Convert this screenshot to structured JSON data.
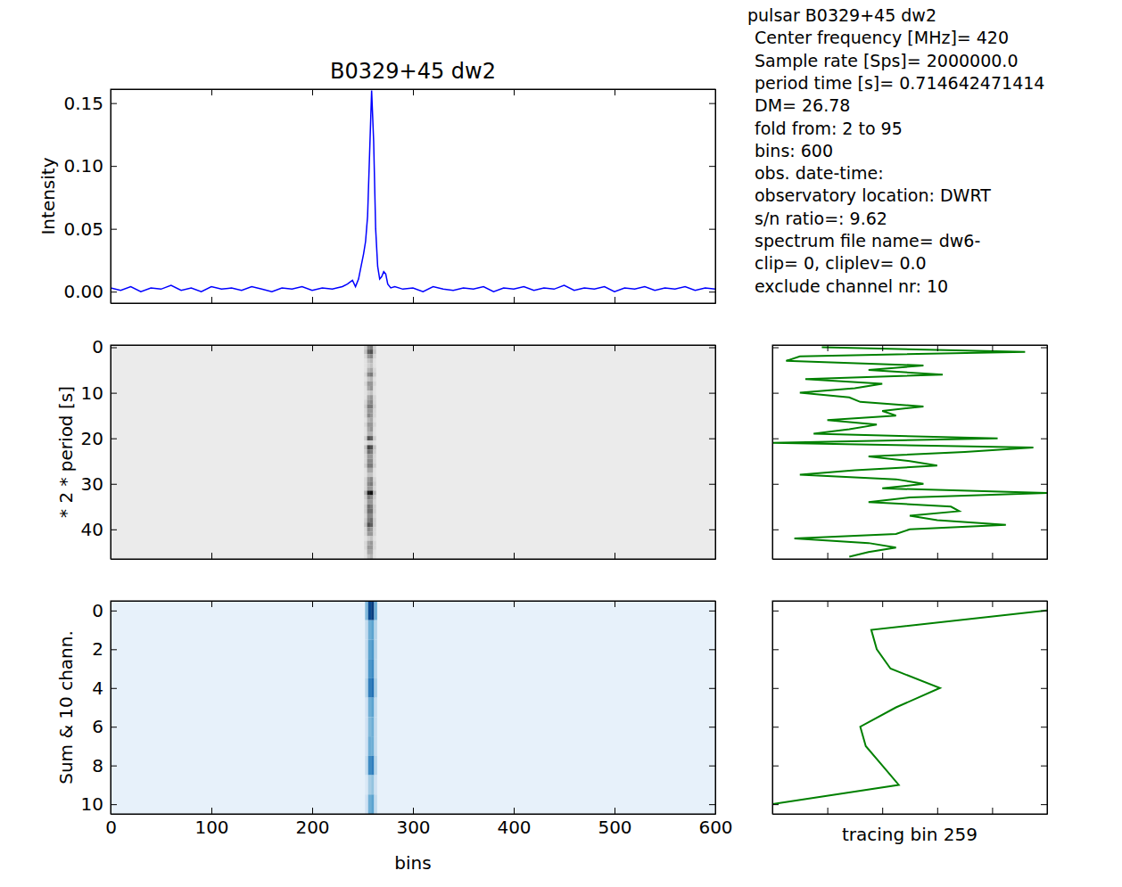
{
  "chart_data": [
    {
      "type": "line",
      "title": "B0329+45 dw2",
      "y_label": "Intensity",
      "color": "#0000ff",
      "x": [
        0,
        10,
        20,
        30,
        40,
        50,
        60,
        70,
        80,
        90,
        100,
        110,
        120,
        130,
        140,
        150,
        160,
        170,
        180,
        190,
        200,
        210,
        220,
        230,
        235,
        240,
        243,
        246,
        249,
        251,
        253,
        255,
        257,
        259,
        261,
        263,
        265,
        267,
        269,
        271,
        273,
        275,
        278,
        282,
        290,
        300,
        310,
        320,
        330,
        340,
        350,
        360,
        370,
        380,
        390,
        400,
        410,
        420,
        430,
        440,
        450,
        460,
        470,
        480,
        490,
        500,
        510,
        520,
        530,
        540,
        550,
        560,
        570,
        580,
        590,
        600
      ],
      "values": [
        0.003,
        0.001,
        0.004,
        0.0,
        0.003,
        0.002,
        0.005,
        0.001,
        0.003,
        0.0,
        0.004,
        0.002,
        0.003,
        0.001,
        0.004,
        0.002,
        0.0,
        0.003,
        0.002,
        0.004,
        0.001,
        0.003,
        0.002,
        0.004,
        0.006,
        0.009,
        0.004,
        0.01,
        0.022,
        0.03,
        0.04,
        0.06,
        0.11,
        0.16,
        0.12,
        0.05,
        0.02,
        0.01,
        0.012,
        0.016,
        0.014,
        0.006,
        0.003,
        0.004,
        0.002,
        0.003,
        0.0,
        0.004,
        0.002,
        0.001,
        0.003,
        0.002,
        0.004,
        0.0,
        0.003,
        0.002,
        0.004,
        0.001,
        0.003,
        0.002,
        0.005,
        0.001,
        0.003,
        0.002,
        0.004,
        0.0,
        0.003,
        0.002,
        0.004,
        0.001,
        0.003,
        0.002,
        0.004,
        0.001,
        0.003,
        0.002
      ],
      "xlim": [
        0,
        600
      ],
      "ylim": [
        -0.0091,
        0.1611
      ],
      "xticks": [
        0,
        100,
        200,
        300,
        400,
        500,
        600
      ],
      "yticks": [
        {
          "value": 0,
          "label": "0.00"
        },
        0.05,
        {
          "value": 0.1,
          "label": "0.10"
        },
        0.15
      ],
      "tick_labels": "y",
      "annotations": [
        "pulsar  B0329+45 dw2",
        "Center frequency [MHz]= 420",
        "Sample rate [Sps]= 2000000.0",
        "period time [s]= 0.714642471414",
        "DM= 26.78",
        "fold from: 2 to 95",
        "bins: 600",
        "obs. date-time:",
        "observatory location: DWRT",
        "s/n ratio=: 9.62",
        "spectrum file name= dw6-",
        "clip= 0, cliplev= 0.0",
        "exclude channel nr: 10"
      ]
    },
    {
      "type": "heatmap",
      "y_label": "* 2 * period [s]",
      "color": "Greys",
      "xlim": [
        0,
        600
      ],
      "ylim": [
        46.5,
        -0.5
      ],
      "xticks": [
        0,
        100,
        200,
        300,
        400,
        500,
        600
      ],
      "yticks": [
        0,
        10,
        20,
        30,
        40
      ],
      "tick_labels": "y",
      "zlim": [
        0,
        1
      ],
      "background": 0.15,
      "cells": {
        "x_edges": [
          251.5,
          254.5,
          257.5,
          260.5,
          263.5
        ],
        "y": [
          0,
          1,
          2,
          3,
          4,
          5,
          6,
          7,
          8,
          9,
          10,
          11,
          12,
          13,
          14,
          15,
          16,
          17,
          18,
          19,
          20,
          21,
          22,
          23,
          24,
          25,
          26,
          27,
          28,
          29,
          30,
          31,
          32,
          33,
          34,
          35,
          36,
          37,
          38,
          39,
          40,
          41,
          42,
          43,
          44,
          45,
          46
        ],
        "values": [
          [
            0.3,
            0.55,
            0.6,
            0.3
          ],
          [
            0.35,
            0.7,
            0.75,
            0.35
          ],
          [
            0.25,
            0.5,
            0.55,
            0.25
          ],
          [
            0.2,
            0.35,
            0.4,
            0.2
          ],
          [
            0.2,
            0.3,
            0.35,
            0.2
          ],
          [
            0.2,
            0.4,
            0.45,
            0.25
          ],
          [
            0.25,
            0.55,
            0.6,
            0.3
          ],
          [
            0.2,
            0.35,
            0.4,
            0.2
          ],
          [
            0.25,
            0.5,
            0.5,
            0.25
          ],
          [
            0.2,
            0.45,
            0.5,
            0.2
          ],
          [
            0.2,
            0.3,
            0.35,
            0.2
          ],
          [
            0.2,
            0.45,
            0.5,
            0.25
          ],
          [
            0.25,
            0.5,
            0.55,
            0.25
          ],
          [
            0.3,
            0.6,
            0.6,
            0.3
          ],
          [
            0.25,
            0.5,
            0.5,
            0.25
          ],
          [
            0.25,
            0.55,
            0.5,
            0.25
          ],
          [
            0.2,
            0.4,
            0.45,
            0.2
          ],
          [
            0.25,
            0.5,
            0.5,
            0.25
          ],
          [
            0.2,
            0.45,
            0.5,
            0.2
          ],
          [
            0.2,
            0.4,
            0.4,
            0.2
          ],
          [
            0.3,
            0.75,
            0.7,
            0.3
          ],
          [
            0.2,
            0.3,
            0.3,
            0.2
          ],
          [
            0.35,
            0.8,
            0.75,
            0.35
          ],
          [
            0.3,
            0.65,
            0.6,
            0.3
          ],
          [
            0.25,
            0.5,
            0.5,
            0.25
          ],
          [
            0.25,
            0.55,
            0.55,
            0.25
          ],
          [
            0.3,
            0.6,
            0.6,
            0.3
          ],
          [
            0.2,
            0.45,
            0.45,
            0.2
          ],
          [
            0.2,
            0.35,
            0.35,
            0.2
          ],
          [
            0.25,
            0.5,
            0.55,
            0.25
          ],
          [
            0.25,
            0.55,
            0.6,
            0.3
          ],
          [
            0.25,
            0.5,
            0.5,
            0.25
          ],
          [
            0.4,
            0.9,
            0.95,
            0.4
          ],
          [
            0.3,
            0.6,
            0.55,
            0.3
          ],
          [
            0.25,
            0.5,
            0.5,
            0.25
          ],
          [
            0.3,
            0.65,
            0.6,
            0.3
          ],
          [
            0.3,
            0.65,
            0.65,
            0.3
          ],
          [
            0.25,
            0.55,
            0.55,
            0.25
          ],
          [
            0.3,
            0.6,
            0.65,
            0.3
          ],
          [
            0.35,
            0.75,
            0.7,
            0.3
          ],
          [
            0.25,
            0.55,
            0.5,
            0.25
          ],
          [
            0.25,
            0.5,
            0.5,
            0.25
          ],
          [
            0.2,
            0.3,
            0.35,
            0.2
          ],
          [
            0.25,
            0.45,
            0.5,
            0.25
          ],
          [
            0.25,
            0.5,
            0.5,
            0.25
          ],
          [
            0.2,
            0.45,
            0.45,
            0.2
          ],
          [
            0.2,
            0.35,
            0.4,
            0.2
          ]
        ]
      }
    },
    {
      "type": "line",
      "orientation": "horizontal",
      "color": "#008000",
      "y": [
        0,
        1,
        2,
        3,
        4,
        5,
        6,
        7,
        8,
        9,
        10,
        11,
        12,
        13,
        14,
        15,
        16,
        17,
        18,
        19,
        20,
        21,
        22,
        23,
        24,
        25,
        26,
        27,
        28,
        29,
        30,
        31,
        32,
        33,
        34,
        35,
        36,
        37,
        38,
        39,
        40,
        41,
        42,
        43,
        44,
        45,
        46
      ],
      "values": [
        0.18,
        0.92,
        0.1,
        0.05,
        0.55,
        0.35,
        0.62,
        0.12,
        0.4,
        0.3,
        0.1,
        0.28,
        0.32,
        0.55,
        0.4,
        0.45,
        0.2,
        0.38,
        0.28,
        0.15,
        0.82,
        0.0,
        0.95,
        0.7,
        0.35,
        0.5,
        0.6,
        0.3,
        0.1,
        0.45,
        0.55,
        0.4,
        1.0,
        0.5,
        0.35,
        0.65,
        0.68,
        0.5,
        0.6,
        0.85,
        0.5,
        0.45,
        0.08,
        0.35,
        0.45,
        0.35,
        0.28
      ],
      "xlim": [
        0,
        1
      ],
      "ylim": [
        46.5,
        -0.5
      ],
      "xticks": [
        0,
        0.2,
        0.4,
        0.6,
        0.8,
        1
      ],
      "yticks": [
        0,
        10,
        20,
        30,
        40
      ],
      "tick_labels": false
    },
    {
      "type": "heatmap",
      "y_label": "Sum & 10 chann.",
      "x_label": "bins",
      "color": "Blues",
      "xlim": [
        0,
        600
      ],
      "ylim": [
        10.5,
        -0.5
      ],
      "xticks": [
        0,
        100,
        200,
        300,
        400,
        500,
        600
      ],
      "yticks": [
        0,
        2,
        4,
        6,
        8,
        10
      ],
      "zlim": [
        0,
        1
      ],
      "background": 0.08,
      "cells": {
        "x_edges": [
          252.5,
          255.5,
          258.5,
          261.5,
          264.5
        ],
        "y": [
          0,
          1,
          2,
          3,
          4,
          5,
          6,
          7,
          8,
          9,
          10
        ],
        "values": [
          [
            0.45,
            0.9,
            0.95,
            0.5
          ],
          [
            0.25,
            0.5,
            0.55,
            0.3
          ],
          [
            0.25,
            0.55,
            0.6,
            0.3
          ],
          [
            0.25,
            0.6,
            0.65,
            0.3
          ],
          [
            0.3,
            0.7,
            0.75,
            0.35
          ],
          [
            0.2,
            0.5,
            0.55,
            0.25
          ],
          [
            0.2,
            0.45,
            0.5,
            0.25
          ],
          [
            0.2,
            0.5,
            0.5,
            0.25
          ],
          [
            0.25,
            0.65,
            0.7,
            0.3
          ],
          [
            0.15,
            0.35,
            0.4,
            0.2
          ],
          [
            0.2,
            0.5,
            0.55,
            0.25
          ]
        ]
      }
    },
    {
      "type": "line",
      "orientation": "horizontal",
      "x_label": "tracing bin 259",
      "color": "#008000",
      "y": [
        0,
        1,
        2,
        3,
        4,
        5,
        6,
        7,
        8,
        9,
        10
      ],
      "values": [
        1.0,
        0.36,
        0.38,
        0.43,
        0.61,
        0.45,
        0.32,
        0.34,
        0.4,
        0.46,
        0.0
      ],
      "xlim": [
        0,
        1
      ],
      "ylim": [
        10.5,
        -0.5
      ],
      "xticks": [
        0,
        0.2,
        0.4,
        0.6,
        0.8,
        1
      ],
      "yticks": [
        0,
        2,
        4,
        6,
        8,
        10
      ],
      "tick_labels": false
    }
  ]
}
